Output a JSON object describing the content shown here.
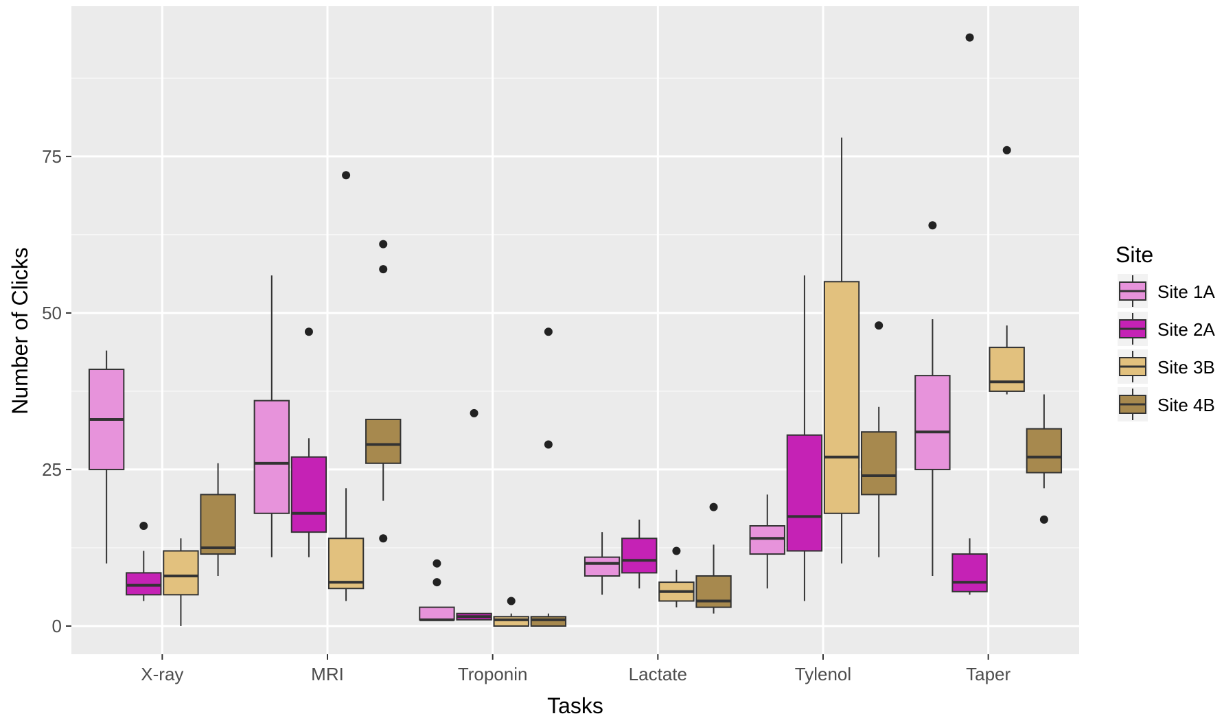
{
  "chart_data": {
    "type": "boxplot",
    "xlabel": "Tasks",
    "ylabel": "Number of Clicks",
    "ylim": [
      -4.5,
      99
    ],
    "yticks": [
      0,
      25,
      50,
      75
    ],
    "categories": [
      "X-ray",
      "MRI",
      "Troponin",
      "Lactate",
      "Tylenol",
      "Taper"
    ],
    "grid": true,
    "legend": {
      "title": "Site",
      "position": "right"
    },
    "series": [
      {
        "name": "Site 1A",
        "color": "#e793db",
        "boxes": [
          {
            "min": 10,
            "q1": 25,
            "median": 33,
            "q3": 41,
            "max": 44,
            "outliers": []
          },
          {
            "min": 11,
            "q1": 18,
            "median": 26,
            "q3": 36,
            "max": 56,
            "outliers": []
          },
          {
            "min": 1,
            "q1": 1,
            "median": 1,
            "q3": 3,
            "max": 3,
            "outliers": [
              7,
              10
            ]
          },
          {
            "min": 5,
            "q1": 8,
            "median": 10,
            "q3": 11,
            "max": 15,
            "outliers": []
          },
          {
            "min": 6,
            "q1": 11.5,
            "median": 14,
            "q3": 16,
            "max": 21,
            "outliers": []
          },
          {
            "min": 8,
            "q1": 25,
            "median": 31,
            "q3": 40,
            "max": 49,
            "outliers": [
              64
            ]
          }
        ]
      },
      {
        "name": "Site 2A",
        "color": "#c522b5",
        "boxes": [
          {
            "min": 4,
            "q1": 5,
            "median": 6.5,
            "q3": 8.5,
            "max": 12,
            "outliers": [
              16
            ]
          },
          {
            "min": 11,
            "q1": 15,
            "median": 18,
            "q3": 27,
            "max": 30,
            "outliers": [
              47
            ]
          },
          {
            "min": 1,
            "q1": 1,
            "median": 1.5,
            "q3": 2,
            "max": 2,
            "outliers": [
              34
            ]
          },
          {
            "min": 6,
            "q1": 8.5,
            "median": 10.5,
            "q3": 14,
            "max": 17,
            "outliers": []
          },
          {
            "min": 4,
            "q1": 12,
            "median": 17.5,
            "q3": 30.5,
            "max": 56,
            "outliers": []
          },
          {
            "min": 5,
            "q1": 5.5,
            "median": 7,
            "q3": 11.5,
            "max": 14,
            "outliers": [
              94
            ]
          }
        ]
      },
      {
        "name": "Site 3B",
        "color": "#e2c17e",
        "boxes": [
          {
            "min": 0,
            "q1": 5,
            "median": 8,
            "q3": 12,
            "max": 14,
            "outliers": []
          },
          {
            "min": 4,
            "q1": 6,
            "median": 7,
            "q3": 14,
            "max": 22,
            "outliers": [
              72
            ]
          },
          {
            "min": 0,
            "q1": 0,
            "median": 1,
            "q3": 1.5,
            "max": 2,
            "outliers": [
              4
            ]
          },
          {
            "min": 3,
            "q1": 4,
            "median": 5.5,
            "q3": 7,
            "max": 9,
            "outliers": [
              12
            ]
          },
          {
            "min": 10,
            "q1": 18,
            "median": 27,
            "q3": 55,
            "max": 78,
            "outliers": []
          },
          {
            "min": 37,
            "q1": 37.5,
            "median": 39,
            "q3": 44.5,
            "max": 48,
            "outliers": [
              76
            ]
          }
        ]
      },
      {
        "name": "Site 4B",
        "color": "#a7894e",
        "boxes": [
          {
            "min": 8,
            "q1": 11.5,
            "median": 12.5,
            "q3": 21,
            "max": 26,
            "outliers": []
          },
          {
            "min": 20,
            "q1": 26,
            "median": 29,
            "q3": 33,
            "max": 33,
            "outliers": [
              14,
              57,
              61
            ]
          },
          {
            "min": 0,
            "q1": 0,
            "median": 1,
            "q3": 1.5,
            "max": 2,
            "outliers": [
              29,
              47
            ]
          },
          {
            "min": 2,
            "q1": 3,
            "median": 4,
            "q3": 8,
            "max": 13,
            "outliers": [
              19
            ]
          },
          {
            "min": 11,
            "q1": 21,
            "median": 24,
            "q3": 31,
            "max": 35,
            "outliers": [
              48
            ]
          },
          {
            "min": 22,
            "q1": 24.5,
            "median": 27,
            "q3": 31.5,
            "max": 37,
            "outliers": [
              17
            ]
          }
        ]
      }
    ]
  }
}
